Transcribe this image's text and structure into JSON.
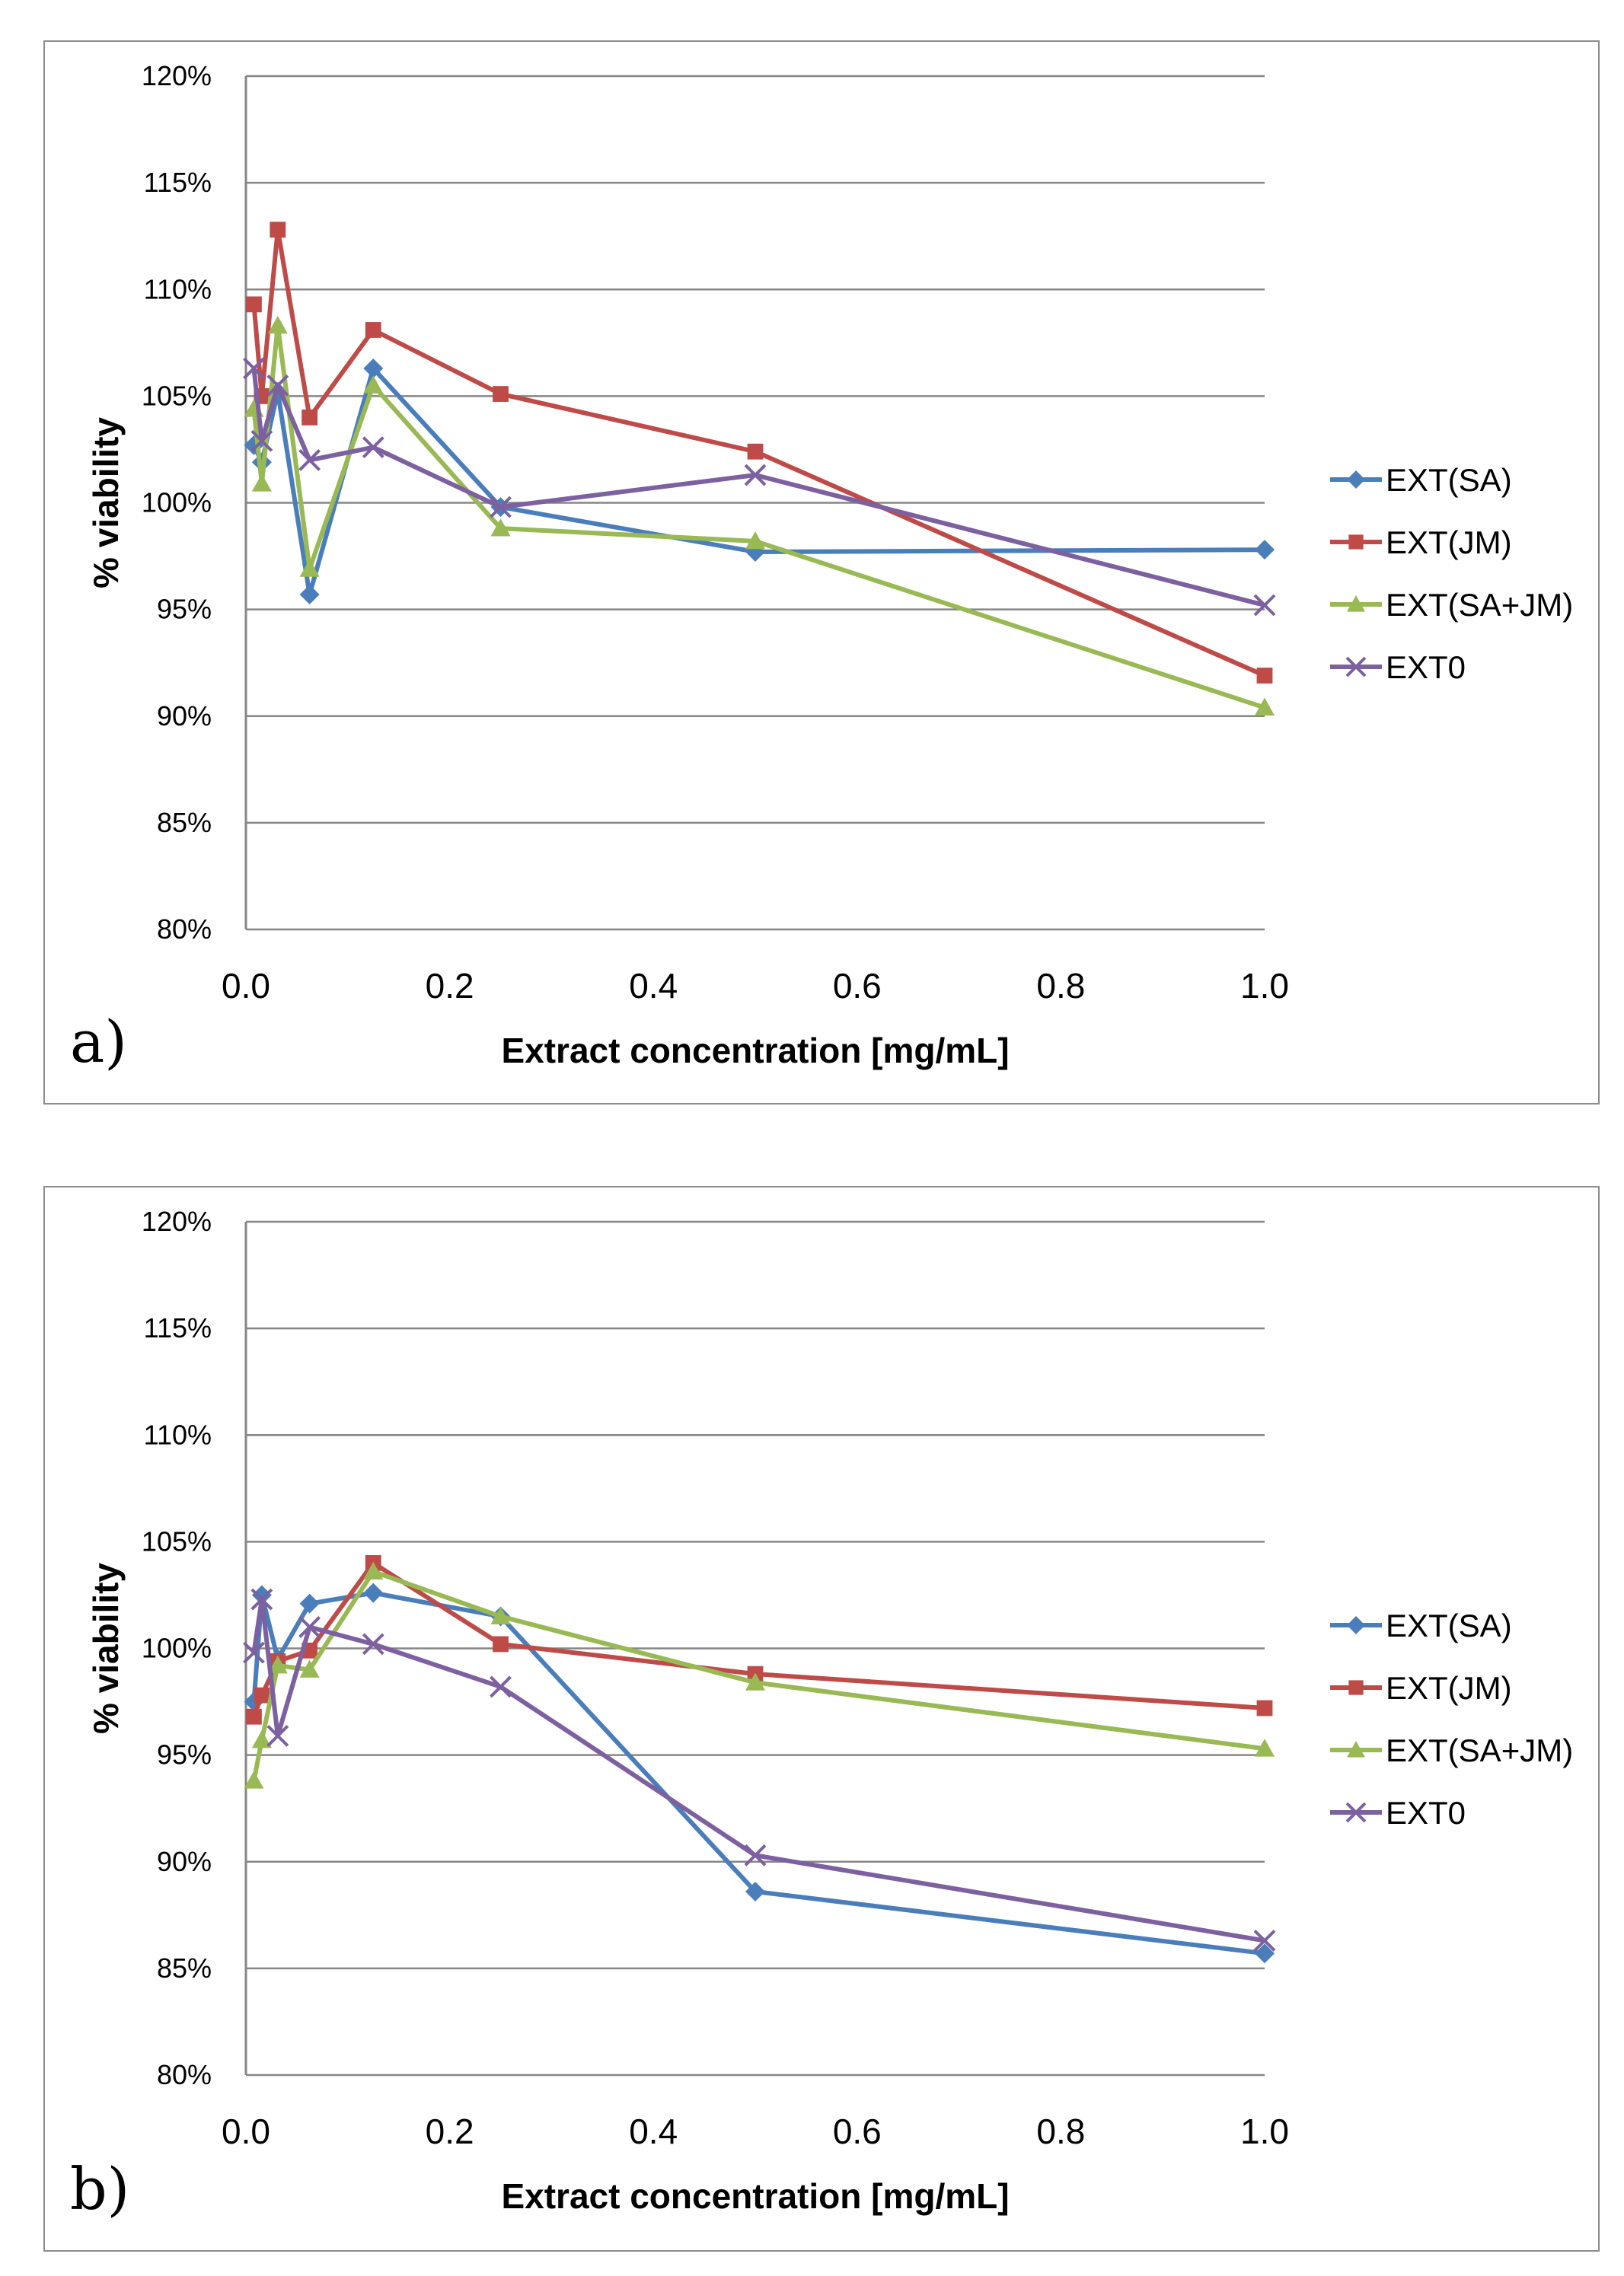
{
  "chart_data": [
    {
      "type": "line",
      "panel_label": "a)",
      "xlabel": "Extract concentration [mg/mL]",
      "ylabel": "% viability",
      "xlim": [
        0,
        1.0
      ],
      "ylim": [
        80,
        120
      ],
      "xticks": [
        "0.0",
        "0.2",
        "0.4",
        "0.6",
        "0.8",
        "1.0"
      ],
      "yticks": [
        "80%",
        "85%",
        "90%",
        "95%",
        "100%",
        "105%",
        "110%",
        "115%",
        "120%"
      ],
      "grid": true,
      "legend_position": "right",
      "x": [
        0.0078,
        0.0156,
        0.03125,
        0.0625,
        0.125,
        0.25,
        0.5,
        1.0
      ],
      "series": [
        {
          "name": "EXT(SA)",
          "color": "#4a7ebb",
          "marker": "diamond",
          "values": [
            102.7,
            101.9,
            105.2,
            95.7,
            106.3,
            99.8,
            97.7,
            97.8
          ]
        },
        {
          "name": "EXT(JM)",
          "color": "#be4b48",
          "marker": "square",
          "values": [
            109.3,
            105.0,
            112.8,
            104.0,
            108.1,
            105.1,
            102.4,
            91.9
          ]
        },
        {
          "name": "EXT(SA+JM)",
          "color": "#98b954",
          "marker": "triangle",
          "values": [
            104.4,
            100.9,
            108.3,
            96.9,
            105.5,
            98.8,
            98.2,
            90.4
          ]
        },
        {
          "name": "EXT0",
          "color": "#7d60a0",
          "marker": "x",
          "values": [
            106.3,
            102.9,
            105.5,
            102.0,
            102.6,
            99.8,
            101.3,
            95.2
          ]
        }
      ]
    },
    {
      "type": "line",
      "panel_label": "b)",
      "xlabel": "Extract concentration [mg/mL]",
      "ylabel": "% viability",
      "xlim": [
        0,
        1.0
      ],
      "ylim": [
        80,
        120
      ],
      "xticks": [
        "0.0",
        "0.2",
        "0.4",
        "0.6",
        "0.8",
        "1.0"
      ],
      "yticks": [
        "80%",
        "85%",
        "90%",
        "95%",
        "100%",
        "105%",
        "110%",
        "115%",
        "120%"
      ],
      "grid": true,
      "legend_position": "right",
      "x": [
        0.0078,
        0.0156,
        0.03125,
        0.0625,
        0.125,
        0.25,
        0.5,
        1.0
      ],
      "series": [
        {
          "name": "EXT(SA)",
          "color": "#4a7ebb",
          "marker": "diamond",
          "values": [
            97.5,
            102.5,
            99.5,
            102.1,
            102.6,
            101.5,
            88.6,
            85.7
          ]
        },
        {
          "name": "EXT(JM)",
          "color": "#be4b48",
          "marker": "square",
          "values": [
            96.8,
            97.8,
            99.4,
            99.9,
            104.0,
            100.2,
            98.8,
            97.2
          ]
        },
        {
          "name": "EXT(SA+JM)",
          "color": "#98b954",
          "marker": "triangle",
          "values": [
            93.8,
            95.7,
            99.2,
            99.0,
            103.6,
            101.5,
            98.4,
            95.3
          ]
        },
        {
          "name": "EXT0",
          "color": "#7d60a0",
          "marker": "x",
          "values": [
            99.8,
            102.3,
            95.9,
            101.0,
            100.2,
            98.2,
            90.3,
            86.3
          ]
        }
      ]
    }
  ]
}
